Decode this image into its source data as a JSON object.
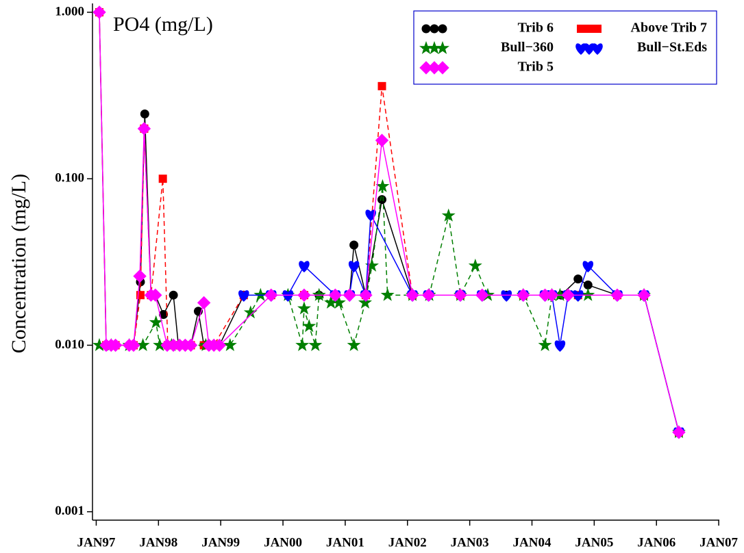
{
  "chart_data": {
    "type": "line",
    "title": "PO4 (mg/L)",
    "y_label": "Concentration (mg/L)",
    "ylog": true,
    "xlim": [
      1996.94,
      2007.01
    ],
    "xticks": [
      {
        "value": 1997,
        "label": "JAN97"
      },
      {
        "value": 1998,
        "label": "JAN98"
      },
      {
        "value": 1999,
        "label": "JAN99"
      },
      {
        "value": 2000,
        "label": "JAN00"
      },
      {
        "value": 2001,
        "label": "JAN01"
      },
      {
        "value": 2002,
        "label": "JAN02"
      },
      {
        "value": 2003,
        "label": "JAN03"
      },
      {
        "value": 2004,
        "label": "JAN04"
      },
      {
        "value": 2005,
        "label": "JAN05"
      },
      {
        "value": 2006,
        "label": "JAN06"
      },
      {
        "value": 2007,
        "label": "JAN07"
      }
    ],
    "ylim": [
      0.00089,
      1.13
    ],
    "yticks": [
      {
        "value": 0.001,
        "label": "0.001"
      },
      {
        "value": 0.01,
        "label": "0.010"
      },
      {
        "value": 0.1,
        "label": "0.100"
      },
      {
        "value": 1,
        "label": "1.000"
      }
    ],
    "series": [
      {
        "name": "Trib 6",
        "color": "#000000",
        "marker": "circle",
        "dashed": false,
        "x": [
          1997.05,
          1997.16,
          1997.24,
          1997.31,
          1997.53,
          1997.6,
          1997.71,
          1997.78,
          1997.88,
          1997.95,
          1998.08,
          1998.24,
          1998.32,
          1998.43,
          1998.52,
          1998.64,
          1998.73,
          1998.81,
          1998.89,
          1998.98,
          1999.37,
          1999.81,
          2000.08,
          2000.34,
          2000.58,
          2000.84,
          2001.07,
          2001.14,
          2001.33,
          2001.59,
          2002.08,
          2002.34,
          2002.85,
          2003.2,
          2003.59,
          2003.86,
          2004.21,
          2004.32,
          2004.47,
          2004.74,
          2004.9,
          2005.37,
          2005.8,
          2006.36
        ],
        "values": [
          1.0,
          0.01,
          0.01,
          0.01,
          0.01,
          0.01,
          0.024,
          0.245,
          0.02,
          0.02,
          0.0153,
          0.02,
          0.01,
          0.01,
          0.01,
          0.016,
          0.01,
          0.01,
          0.01,
          0.01,
          0.02,
          0.02,
          0.02,
          0.02,
          0.02,
          0.02,
          0.02,
          0.04,
          0.02,
          0.075,
          0.02,
          0.02,
          0.02,
          0.02,
          0.02,
          0.02,
          0.02,
          0.02,
          0.02,
          0.025,
          0.023,
          0.02,
          0.02,
          0.003
        ]
      },
      {
        "name": "Above Trib 7",
        "color": "#ff0000",
        "marker": "square",
        "dashed": true,
        "x": [
          1997.05,
          1997.16,
          1997.31,
          1997.6,
          1997.71,
          1997.77,
          1997.88,
          1998.07,
          1998.15,
          1998.34,
          1998.52,
          1998.73,
          1998.89,
          1999.37,
          1999.81,
          2000.34,
          2000.84,
          2001.33,
          2001.59,
          2002.08,
          2002.85,
          2003.86,
          2004.74,
          2005.37,
          2005.8,
          2006.36
        ],
        "values": [
          1.0,
          0.01,
          0.01,
          0.01,
          0.02,
          0.2,
          0.02,
          0.1,
          0.01,
          0.01,
          0.01,
          0.01,
          0.01,
          0.02,
          0.02,
          0.02,
          0.02,
          0.02,
          0.36,
          0.02,
          0.02,
          0.02,
          0.02,
          0.02,
          0.02,
          0.003
        ]
      },
      {
        "name": "Bull−360",
        "color": "#007f00",
        "marker": "star",
        "dashed": true,
        "x": [
          1997.05,
          1997.24,
          1997.53,
          1997.75,
          1997.96,
          1998.02,
          1998.21,
          1998.76,
          1999.15,
          1999.48,
          1999.64,
          2000.08,
          2000.31,
          2000.34,
          2000.42,
          2000.52,
          2000.58,
          2000.77,
          2000.9,
          2001.14,
          2001.32,
          2001.43,
          2001.6,
          2001.68,
          2002.08,
          2002.35,
          2002.66,
          2002.85,
          2003.09,
          2003.29,
          2003.86,
          2004.21,
          2004.32,
          2004.45,
          2004.9,
          2005.8,
          2006.36
        ],
        "values": [
          0.01,
          0.01,
          0.01,
          0.01,
          0.0137,
          0.01,
          0.01,
          0.01,
          0.01,
          0.0157,
          0.02,
          0.02,
          0.01,
          0.0166,
          0.013,
          0.01,
          0.02,
          0.018,
          0.018,
          0.01,
          0.018,
          0.03,
          0.09,
          0.02,
          0.02,
          0.02,
          0.06,
          0.02,
          0.03,
          0.02,
          0.02,
          0.01,
          0.02,
          0.02,
          0.02,
          0.02,
          0.003
        ]
      },
      {
        "name": "Bull−St.Eds",
        "color": "#0000ff",
        "marker": "heart",
        "dashed": false,
        "x": [
          1999.37,
          1999.81,
          2000.08,
          2000.34,
          2000.84,
          2001.07,
          2001.14,
          2001.33,
          2001.41,
          2002.08,
          2002.34,
          2002.85,
          2003.2,
          2003.59,
          2003.86,
          2004.21,
          2004.32,
          2004.45,
          2004.58,
          2004.74,
          2004.9,
          2005.37,
          2005.8,
          2006.36
        ],
        "values": [
          0.02,
          0.02,
          0.02,
          0.03,
          0.02,
          0.02,
          0.03,
          0.02,
          0.061,
          0.02,
          0.02,
          0.02,
          0.02,
          0.02,
          0.02,
          0.02,
          0.02,
          0.01,
          0.02,
          0.02,
          0.03,
          0.02,
          0.02,
          0.003
        ]
      },
      {
        "name": "Trib 5",
        "color": "#ff00ff",
        "marker": "diamond",
        "dashed": false,
        "x": [
          1997.05,
          1997.16,
          1997.24,
          1997.31,
          1997.53,
          1997.6,
          1997.7,
          1997.77,
          1997.88,
          1997.95,
          1998.14,
          1998.24,
          1998.34,
          1998.43,
          1998.52,
          1998.73,
          1998.81,
          1998.89,
          1998.98,
          1999.81,
          2000.34,
          2000.84,
          2001.07,
          2001.33,
          2001.59,
          2002.08,
          2002.34,
          2002.85,
          2003.2,
          2003.86,
          2004.21,
          2004.32,
          2004.58,
          2005.37,
          2005.8,
          2006.36
        ],
        "values": [
          1.0,
          0.01,
          0.01,
          0.01,
          0.01,
          0.01,
          0.026,
          0.2,
          0.02,
          0.02,
          0.01,
          0.01,
          0.01,
          0.01,
          0.01,
          0.018,
          0.01,
          0.01,
          0.01,
          0.02,
          0.02,
          0.02,
          0.02,
          0.02,
          0.17,
          0.02,
          0.02,
          0.02,
          0.02,
          0.02,
          0.02,
          0.02,
          0.02,
          0.02,
          0.02,
          0.003
        ]
      }
    ]
  }
}
